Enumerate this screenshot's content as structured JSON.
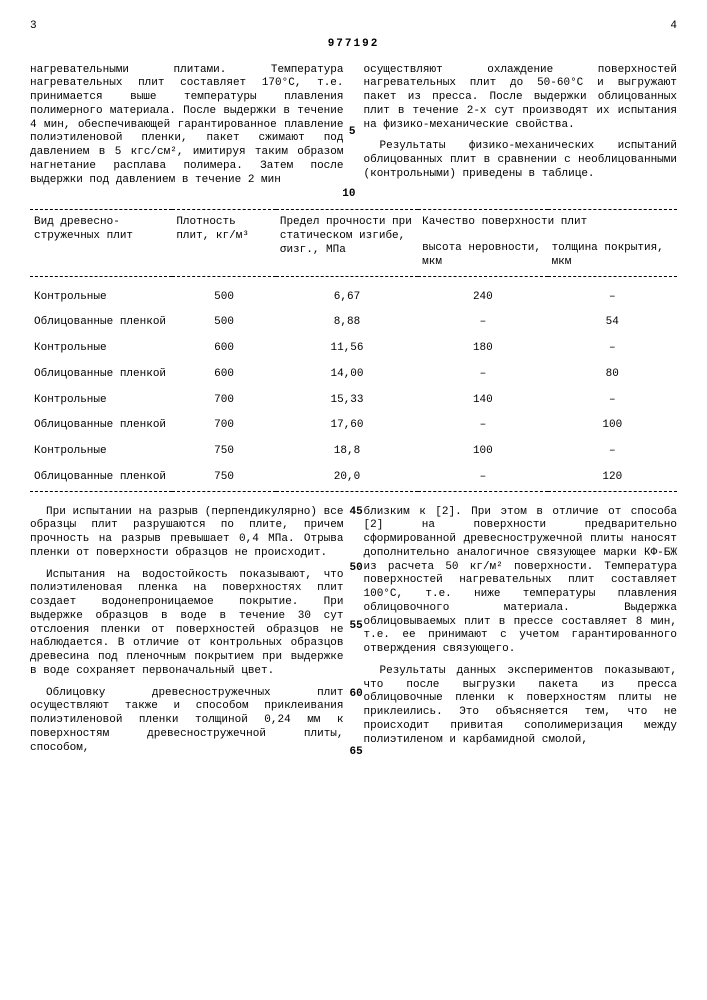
{
  "page_left": "3",
  "page_right": "4",
  "doc_number": "977192",
  "line_marks": {
    "five": "5",
    "ten": "10",
    "fortyfive": "45",
    "fifty": "50",
    "fiftyfive": "55",
    "sixty": "60",
    "sixtyfive": "65"
  },
  "upper": {
    "left": "нагревательными плитами. Температура нагревательных плит составляет 170°С, т.е. принимается выше температуры плавления полимерного материала. После выдержки в течение 4 мин, обеспечивающей гарантированное плавление полиэтиленовой пленки, пакет сжимают под давлением в 5 кгс/см², имитируя таким образом нагнетание расплава полимера. Затем после выдержки под давлением в течение 2 мин",
    "right_p1": "осуществляют охлаждение поверхностей нагревательных плит до 50-60°С и выгружают пакет из пресса. После выдержки облицованных плит в течение 2-х сут производят их испытания на физико-механические свойства.",
    "right_p2": "Результаты физико-механических испытаний облицованных плит в сравнении с необлицованными (контрольными) приведены в таблице."
  },
  "table": {
    "headers": {
      "type": "Вид древесно-стружечных плит",
      "density": "Плотность плит, кг/м³",
      "strength": "Предел прочности при статическом изгибе, σизг., МПа",
      "quality": "Качество поверхности плит",
      "roughness": "высота неровности, мкм",
      "thickness": "толщина покрытия, мкм"
    },
    "rows": [
      {
        "type": "Контрольные",
        "density": "500",
        "strength": "6,67",
        "roughness": "240",
        "thickness": "–"
      },
      {
        "type": "Облицованные пленкой",
        "density": "500",
        "strength": "8,88",
        "roughness": "–",
        "thickness": "54"
      },
      {
        "type": "Контрольные",
        "density": "600",
        "strength": "11,56",
        "roughness": "180",
        "thickness": "–"
      },
      {
        "type": "Облицованные пленкой",
        "density": "600",
        "strength": "14,00",
        "roughness": "–",
        "thickness": "80"
      },
      {
        "type": "Контрольные",
        "density": "700",
        "strength": "15,33",
        "roughness": "140",
        "thickness": "–"
      },
      {
        "type": "Облицованные пленкой",
        "density": "700",
        "strength": "17,60",
        "roughness": "–",
        "thickness": "100"
      },
      {
        "type": "Контрольные",
        "density": "750",
        "strength": "18,8",
        "roughness": "100",
        "thickness": "–"
      },
      {
        "type": "Облицованные пленкой",
        "density": "750",
        "strength": "20,0",
        "roughness": "–",
        "thickness": "120"
      }
    ]
  },
  "lower": {
    "left_p1": "При испытании на разрыв (перпендикулярно) все образцы плит разрушаются по плите, причем прочность на разрыв превышает 0,4 МПа. Отрыва пленки от поверхности образцов не происходит.",
    "left_p2": "Испытания на водостойкость показывают, что полиэтиленовая пленка на поверхностях плит создает водонепроницаемое покрытие. При выдержке образцов в воде в течение 30 сут отслоения пленки от поверхностей образцов не наблюдается. В отличие от контрольных образцов древесина под пленочным покрытием при выдержке в воде сохраняет первоначальный цвет.",
    "left_p3": "Облицовку древесностружечных плит осуществляют также и способом приклеивания полиэтиленовой пленки толщиной 0,24 мм к поверхностям древесностружечной плиты, способом,",
    "right_p1": "близким к [2]. При этом в отличие от способа [2] на поверхности предварительно сформированной древесностружечной плиты наносят дополнительно аналогичное связующее марки КФ-БЖ из расчета 50 кг/м² поверхности. Температура поверхностей нагревательных плит составляет 100°С, т.е. ниже температуры плавления облицовочного материала. Выдержка облицовываемых плит в прессе составляет 8 мин, т.е. ее принимают с учетом гарантированного отверждения связующего.",
    "right_p2": "Результаты данных экспериментов показывают, что после выгрузки пакета из пресса облицовочные пленки к поверхностям плиты не приклеились. Это объясняется тем, что не происходит привитая сополимеризация между полиэтиленом и карбамидной смолой,"
  }
}
